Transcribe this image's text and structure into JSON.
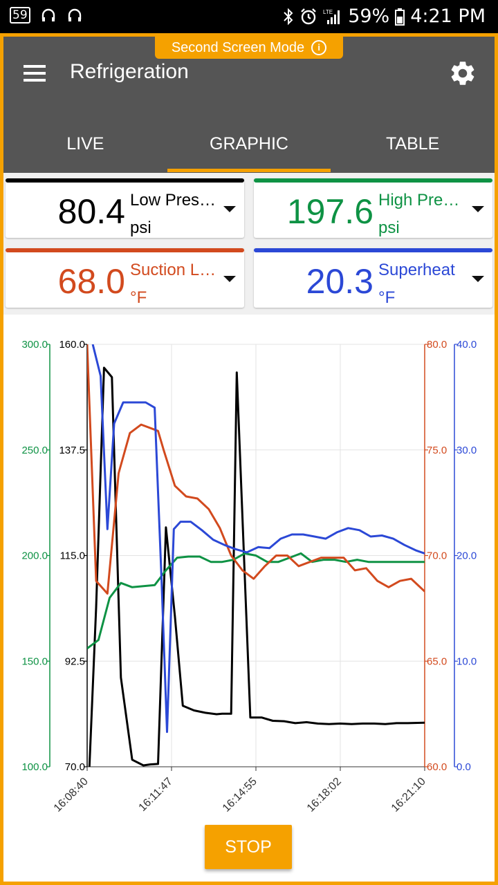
{
  "status_bar": {
    "badge": "59",
    "battery": "59%",
    "time": "4:21 PM"
  },
  "banner": {
    "label": "Second Screen Mode",
    "info_icon": "info-icon"
  },
  "app_bar": {
    "title": "Refrigeration",
    "menu_icon": "menu-icon",
    "settings_icon": "gear-icon"
  },
  "tabs": [
    {
      "label": "LIVE"
    },
    {
      "label": "GRAPHIC",
      "active": true
    },
    {
      "label": "TABLE"
    }
  ],
  "readings": [
    {
      "value": "80.4",
      "name": "Low Pres…",
      "unit": "psi",
      "color": "#000000"
    },
    {
      "value": "197.6",
      "name": "High Pre…",
      "unit": "psi",
      "color": "#0e9244"
    },
    {
      "value": "68.0",
      "name": "Suction L…",
      "unit": "°F",
      "color": "#d24a1e"
    },
    {
      "value": "20.3",
      "name": "Superheat",
      "unit": "°F",
      "color": "#2b48d6"
    }
  ],
  "chart_data": {
    "type": "line",
    "x_tick_labels": [
      "16:08:40",
      "16:11:47",
      "16:14:55",
      "16:18:02",
      "16:21:10"
    ],
    "axes": {
      "high_pressure": {
        "side": "left-outer",
        "ylim": [
          100,
          300
        ],
        "ticks": [
          "100.0",
          "150.0",
          "200.0",
          "250.0",
          "300.0"
        ],
        "color": "#0e9244"
      },
      "low_pressure": {
        "side": "left-inner",
        "ylim": [
          70,
          160
        ],
        "ticks": [
          "70.0",
          "92.5",
          "115.0",
          "137.5",
          "160.0"
        ],
        "color": "#000000"
      },
      "suction_temp": {
        "side": "right-inner",
        "ylim": [
          60,
          80
        ],
        "ticks": [
          "60.0",
          "65.0",
          "70.0",
          "75.0",
          "80.0"
        ],
        "color": "#d24a1e"
      },
      "superheat": {
        "side": "right-outer",
        "ylim": [
          0,
          40
        ],
        "ticks": [
          "0.0",
          "10.0",
          "20.0",
          "30.0",
          "40.0"
        ],
        "color": "#2b48d6"
      }
    },
    "x_range": [
      0,
      30
    ],
    "grid": true,
    "series": [
      {
        "axis": "low_pressure",
        "x": [
          0.2,
          0.8,
          1.5,
          2.2,
          3,
          4,
          5,
          5.6,
          6.3,
          7,
          7.8,
          8.5,
          9.5,
          10.5,
          11.5,
          12,
          12.8,
          13.3,
          14.5,
          15.5,
          16.5,
          17.5,
          18.5,
          19.5,
          20.5,
          21.5,
          22.5,
          23.5,
          24.5,
          25.5,
          26.5,
          27.5,
          28.5,
          30
        ],
        "values": [
          70,
          104,
          155,
          153,
          89,
          71.5,
          70.3,
          70.5,
          70.6,
          121,
          102,
          83,
          82,
          81.5,
          81.2,
          81.3,
          81.3,
          154,
          80.5,
          80.5,
          79.8,
          79.7,
          79.3,
          79.5,
          79.2,
          79.1,
          79.2,
          79.1,
          79.2,
          79.2,
          79.1,
          79.3,
          79.3,
          79.4
        ]
      },
      {
        "axis": "high_pressure",
        "x": [
          0,
          1,
          2,
          3,
          4,
          5,
          6,
          7,
          8,
          9,
          10,
          11,
          12,
          13,
          14,
          15,
          16,
          17,
          18,
          19,
          20,
          21,
          22,
          23,
          24,
          25,
          26,
          27,
          28,
          29,
          30
        ],
        "values": [
          156,
          160,
          180,
          187,
          185,
          185.5,
          186,
          193,
          199,
          199.5,
          199.5,
          197,
          197,
          198,
          201,
          200,
          197,
          197,
          199,
          201,
          197,
          198,
          198,
          197,
          198,
          197,
          197,
          197,
          197,
          197,
          197
        ]
      },
      {
        "axis": "suction_temp",
        "x": [
          0,
          0.8,
          1.8,
          2.8,
          3.8,
          4.8,
          5.8,
          6.3,
          6.8,
          7.8,
          8.8,
          9.8,
          10.8,
          11.8,
          12.8,
          13.8,
          14.8,
          15.8,
          16.8,
          17.8,
          18.8,
          19.8,
          20.8,
          21.8,
          22.8,
          23.8,
          24.8,
          25.8,
          26.8,
          27.8,
          28.8,
          30
        ],
        "values": [
          80,
          68.8,
          68.2,
          73.9,
          75.8,
          76.2,
          76,
          75.9,
          75,
          73.3,
          72.8,
          72.7,
          72.2,
          71.3,
          70,
          69.3,
          68.9,
          69.5,
          70,
          70,
          69.5,
          69.7,
          69.9,
          69.9,
          69.9,
          69.3,
          69.4,
          68.8,
          68.5,
          68.8,
          68.9,
          68.3
        ]
      },
      {
        "axis": "superheat",
        "x": [
          0.5,
          1.2,
          1.8,
          2.4,
          3.2,
          4.2,
          5.2,
          6,
          6.6,
          7.1,
          7.7,
          8.3,
          9.2,
          10.2,
          11.2,
          12.2,
          13.2,
          14.2,
          15.2,
          16.2,
          17.2,
          18.2,
          19.2,
          20.2,
          21.2,
          22.2,
          23.2,
          24.2,
          25.2,
          26.2,
          27.2,
          28.2,
          29.2,
          30
        ],
        "values": [
          40,
          37,
          22.5,
          32.5,
          34.5,
          34.5,
          34.5,
          34,
          18,
          3.3,
          22.5,
          23.2,
          23.2,
          22.4,
          21.5,
          21,
          20.6,
          20.3,
          20.8,
          20.7,
          21.6,
          22,
          22,
          21.8,
          21.6,
          22.2,
          22.6,
          22.4,
          21.8,
          21.9,
          21.6,
          21,
          20.5,
          20.2
        ]
      }
    ]
  },
  "controls": {
    "stop_label": "STOP"
  }
}
